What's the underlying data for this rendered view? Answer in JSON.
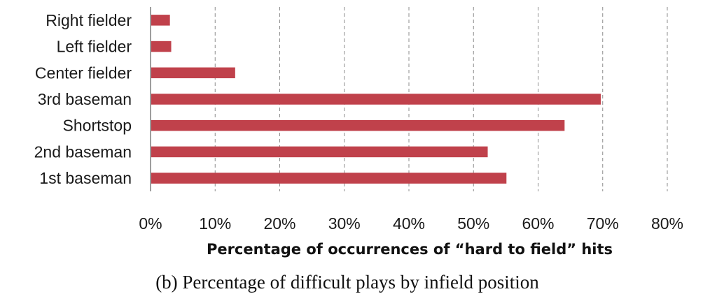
{
  "chart_data": {
    "type": "bar",
    "orientation": "horizontal",
    "categories": [
      "Right fielder",
      "Left fielder",
      "Center fielder",
      "3rd baseman",
      "Shortstop",
      "2nd baseman",
      "1st baseman"
    ],
    "values": [
      3,
      3.2,
      13.1,
      69.7,
      64.1,
      52.2,
      55.1
    ],
    "xlabel": "Percentage of occurrences of “hard to field” hits",
    "ylabel": "",
    "xlim": [
      0,
      80
    ],
    "xticks": [
      "0%",
      "10%",
      "20%",
      "30%",
      "40%",
      "50%",
      "60%",
      "70%",
      "80%"
    ],
    "grid": "vertical dashed",
    "bar_color": "#c0414b",
    "caption": "(b) Percentage of difficult plays by infield position"
  }
}
